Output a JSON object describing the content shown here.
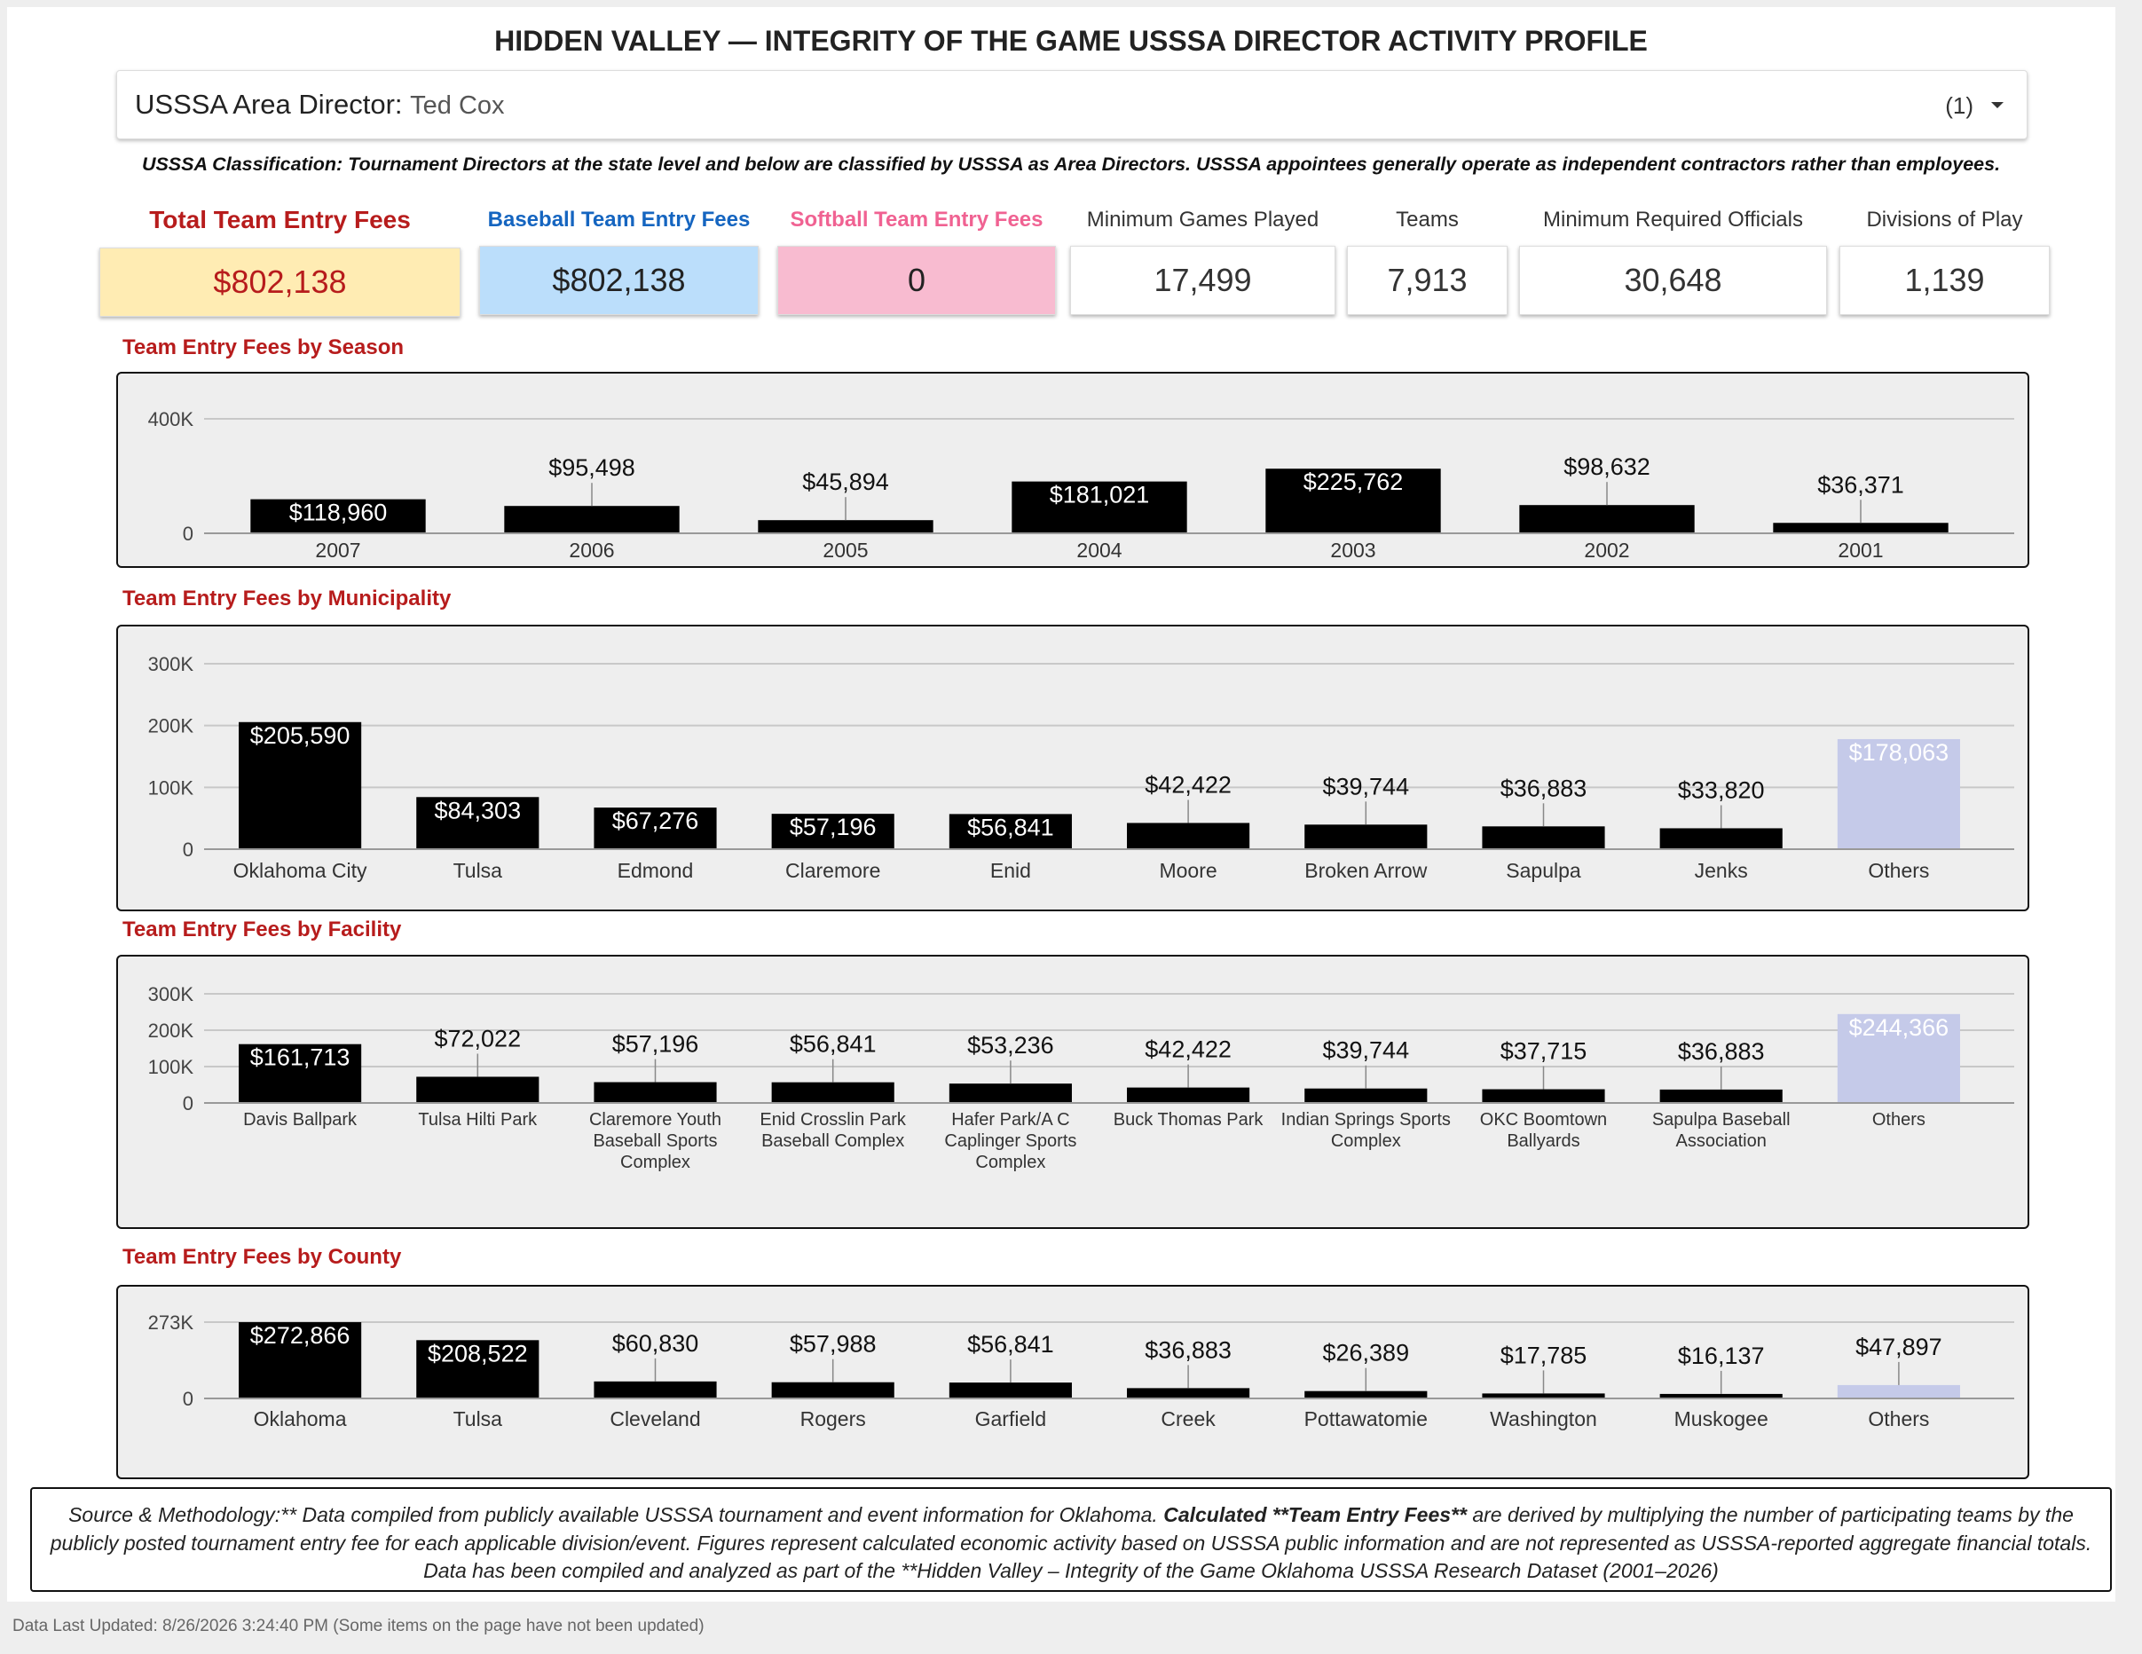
{
  "header": {
    "title": "HIDDEN VALLEY — INTEGRITY OF THE GAME USSSA DIRECTOR ACTIVITY PROFILE"
  },
  "filter": {
    "label": "USSSA Area Director:",
    "value": "Ted Cox",
    "count": "(1)"
  },
  "classification_note": "USSSA Classification: Tournament Directors at the state level and below are classified by USSSA as Area Directors. USSSA appointees generally operate as independent contractors rather than employees.",
  "kpis": [
    {
      "label": "Total Team Entry Fees",
      "value": "$802,138"
    },
    {
      "label": "Baseball Team Entry Fees",
      "value": "$802,138"
    },
    {
      "label": "Softball Team Entry Fees",
      "value": "0"
    },
    {
      "label": "Minimum Games Played",
      "value": "17,499"
    },
    {
      "label": "Teams",
      "value": "7,913"
    },
    {
      "label": "Minimum Required Officials",
      "value": "30,648"
    },
    {
      "label": "Divisions of Play",
      "value": "1,139"
    }
  ],
  "chart_data": [
    {
      "type": "bar",
      "title": "Team Entry Fees by Season",
      "categories": [
        "2007",
        "2006",
        "2005",
        "2004",
        "2003",
        "2002",
        "2001"
      ],
      "values": [
        118960,
        95498,
        45894,
        181021,
        225762,
        98632,
        36371
      ],
      "value_labels": [
        "$118,960",
        "$95,498",
        "$45,894",
        "$181,021",
        "$225,762",
        "$98,632",
        "$36,371"
      ],
      "colors": [
        "#000000",
        "#000000",
        "#000000",
        "#000000",
        "#000000",
        "#000000",
        "#000000"
      ],
      "ylim": [
        0,
        400000
      ],
      "yticks": [
        0,
        {
          "value": 400000,
          "label": "400K"
        }
      ],
      "grid": true
    },
    {
      "type": "bar",
      "title": "Team Entry Fees by Municipality",
      "categories": [
        "Oklahoma City",
        "Tulsa",
        "Edmond",
        "Claremore",
        "Enid",
        "Moore",
        "Broken Arrow",
        "Sapulpa",
        "Jenks",
        "Others"
      ],
      "values": [
        205590,
        84303,
        67276,
        57196,
        56841,
        42422,
        39744,
        36883,
        33820,
        178063
      ],
      "value_labels": [
        "$205,590",
        "$84,303",
        "$67,276",
        "$57,196",
        "$56,841",
        "$42,422",
        "$39,744",
        "$36,883",
        "$33,820",
        "$178,063"
      ],
      "colors": [
        "#000000",
        "#000000",
        "#000000",
        "#000000",
        "#000000",
        "#000000",
        "#000000",
        "#000000",
        "#000000",
        "#c5cae9"
      ],
      "ylim": [
        0,
        300000
      ],
      "yticks": [
        0,
        {
          "value": 100000,
          "label": "100K"
        },
        {
          "value": 200000,
          "label": "200K"
        },
        {
          "value": 300000,
          "label": "300K"
        }
      ],
      "grid": true
    },
    {
      "type": "bar",
      "title": "Team Entry Fees by Facility",
      "categories": [
        "Davis Ballpark",
        "Tulsa Hilti Park",
        "Claremore Youth Baseball Sports Complex",
        "Enid Crosslin Park Baseball Complex",
        "Hafer Park/A C Caplinger Sports Complex",
        "Buck Thomas Park",
        "Indian Springs Sports Complex",
        "OKC Boomtown Ballyards",
        "Sapulpa Baseball Association",
        "Others"
      ],
      "values": [
        161713,
        72022,
        57196,
        56841,
        53236,
        42422,
        39744,
        37715,
        36883,
        244366
      ],
      "value_labels": [
        "$161,713",
        "$72,022",
        "$57,196",
        "$56,841",
        "$53,236",
        "$42,422",
        "$39,744",
        "$37,715",
        "$36,883",
        "$244,366"
      ],
      "colors": [
        "#000000",
        "#000000",
        "#000000",
        "#000000",
        "#000000",
        "#000000",
        "#000000",
        "#000000",
        "#000000",
        "#c5cae9"
      ],
      "ylim": [
        0,
        300000
      ],
      "yticks": [
        0,
        {
          "value": 100000,
          "label": "100K"
        },
        {
          "value": 200000,
          "label": "200K"
        },
        {
          "value": 300000,
          "label": "300K"
        }
      ],
      "grid": true
    },
    {
      "type": "bar",
      "title": "Team Entry Fees by County",
      "categories": [
        "Oklahoma",
        "Tulsa",
        "Cleveland",
        "Rogers",
        "Garfield",
        "Creek",
        "Pottawatomie",
        "Washington",
        "Muskogee",
        "Others"
      ],
      "values": [
        272866,
        208522,
        60830,
        57988,
        56841,
        36883,
        26389,
        17785,
        16137,
        47897
      ],
      "value_labels": [
        "$272,866",
        "$208,522",
        "$60,830",
        "$57,988",
        "$56,841",
        "$36,883",
        "$26,389",
        "$17,785",
        "$16,137",
        "$47,897"
      ],
      "colors": [
        "#000000",
        "#000000",
        "#000000",
        "#000000",
        "#000000",
        "#000000",
        "#000000",
        "#000000",
        "#000000",
        "#c5cae9"
      ],
      "ylim": [
        0,
        273000
      ],
      "yticks": [
        0,
        {
          "value": 273000,
          "label": "273K"
        }
      ],
      "grid": true
    }
  ],
  "footer": {
    "text_1": "Source & Methodology:** Data compiled from publicly available USSSA tournament and event information for Oklahoma. ",
    "bold": "Calculated **Team Entry Fees**",
    "text_2": " are derived by multiplying the number of participating teams by the publicly posted tournament entry fee for each applicable division/event. Figures represent calculated economic activity based on USSSA public information and are not represented as USSSA-reported aggregate financial totals. Data has been compiled and analyzed as part of the **Hidden Valley – Integrity of the Game Oklahoma USSSA Research Dataset (2001–2026)"
  },
  "last_updated": "Data Last Updated: 8/26/2026 3:24:40 PM (Some items on the page have not been updated)"
}
